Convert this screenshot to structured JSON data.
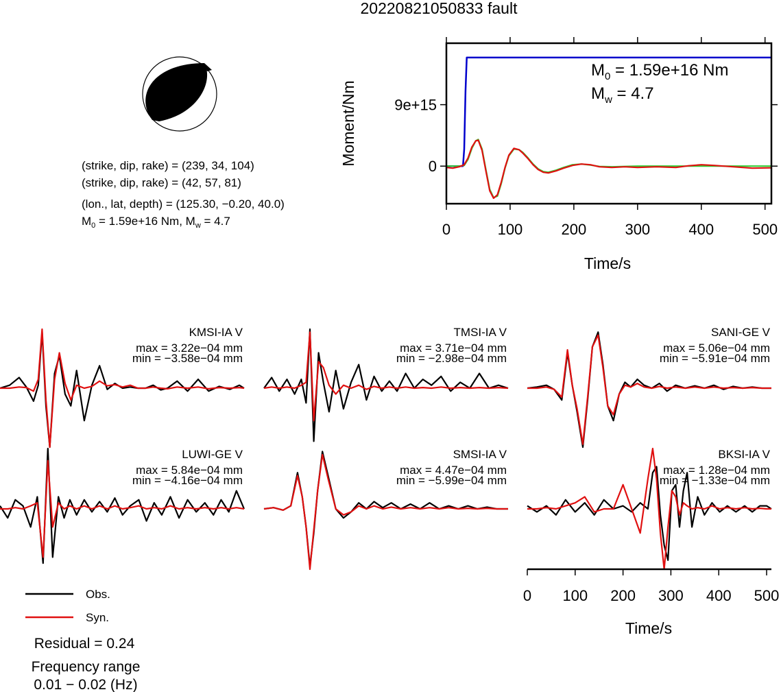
{
  "figure": {
    "title": "20220821050833 fault"
  },
  "mechanism": {
    "plane1": "(strike, dip, rake) = (239, 34, 104)",
    "plane2": "(strike, dip, rake) = (42, 57, 81)",
    "location": "(lon., lat, depth) = (125.30, −0.20, 40.0)",
    "m0_text": "M",
    "m0_sub": "0",
    "m0_rest": " = 1.59e+16 Nm, M",
    "mw_sub": "w",
    "mw_rest": " = 4.7"
  },
  "moment_panel": {
    "m0_prefix": "M",
    "m0_sub": "0",
    "m0_value": " = 1.59e+16 Nm",
    "mw_prefix": "M",
    "mw_sub": "w",
    "mw_value": " = 4.7"
  },
  "legend": {
    "obs_label": "Obs.",
    "syn_label": "Syn.",
    "residual": "Residual = 0.24",
    "freq_title": "Frequency range",
    "freq_value": "0.01 − 0.02 (Hz)"
  },
  "colors": {
    "observed": "#000000",
    "synthetic": "#e01010",
    "moment_cumulative": "#0000cc",
    "moment_rate_fit": "#33cc33",
    "moment_rate": "#e01010"
  },
  "chart_data": [
    {
      "type": "line",
      "panel": "moment",
      "xlabel": "Time/s",
      "ylabel": "Moment/Nm",
      "xlim": [
        0,
        510
      ],
      "ylim": [
        -5500000000000000.0,
        1.8e+16
      ],
      "x_ticks": [
        0,
        100,
        200,
        300,
        400,
        500
      ],
      "y_ticks": [
        {
          "value": 0,
          "label": "0"
        },
        {
          "value": 9000000000000000.0,
          "label": "9e+15"
        }
      ],
      "series": [
        {
          "key": "cumulative",
          "x": [
            0,
            20,
            26,
            28,
            30,
            32,
            510
          ],
          "y": [
            0,
            0,
            0,
            2500000000000000.0,
            1.1e+16,
            1.59e+16,
            1.59e+16
          ]
        },
        {
          "key": "rate_fit",
          "x": [
            0,
            20,
            28,
            34,
            40,
            46,
            50,
            56,
            62,
            68,
            74,
            80,
            86,
            92,
            98,
            106,
            114,
            120,
            128,
            136,
            144,
            152,
            160,
            172,
            184,
            198,
            212,
            226,
            240,
            260,
            280,
            300,
            330,
            360,
            400,
            450,
            510
          ],
          "y": [
            0,
            0,
            100000000000000.0,
            1000000000000000.0,
            2600000000000000.0,
            3700000000000000.0,
            3900000000000000.0,
            2500000000000000.0,
            -500000000000000.0,
            -3400000000000000.0,
            -4600000000000000.0,
            -4400000000000000.0,
            -2600000000000000.0,
            -300000000000000.0,
            1500000000000000.0,
            2500000000000000.0,
            2400000000000000.0,
            2000000000000000.0,
            1200000000000000.0,
            300000000000000.0,
            -400000000000000.0,
            -800000000000000.0,
            -900000000000000.0,
            -600000000000000.0,
            -200000000000000.0,
            200000000000000.0,
            300000000000000.0,
            150000000000000.0,
            -50000000000000.0,
            -100000000000000.0,
            -50000000000000.0,
            0,
            0,
            0,
            0,
            0,
            0
          ]
        },
        {
          "key": "rate",
          "x": [
            0,
            10,
            20,
            28,
            34,
            40,
            46,
            50,
            56,
            62,
            68,
            74,
            80,
            86,
            92,
            98,
            106,
            114,
            120,
            128,
            136,
            144,
            152,
            160,
            172,
            184,
            198,
            212,
            226,
            240,
            260,
            280,
            300,
            330,
            360,
            380,
            400,
            420,
            450,
            480,
            510
          ],
          "y": [
            -200000000000000.0,
            -300000000000000.0,
            -100000000000000.0,
            200000000000000.0,
            1200000000000000.0,
            2800000000000000.0,
            3700000000000000.0,
            3800000000000000.0,
            2300000000000000.0,
            -700000000000000.0,
            -3600000000000000.0,
            -4700000000000000.0,
            -4200000000000000.0,
            -2400000000000000.0,
            -200000000000000.0,
            1600000000000000.0,
            2600000000000000.0,
            2400000000000000.0,
            1900000000000000.0,
            1100000000000000.0,
            200000000000000.0,
            -500000000000000.0,
            -900000000000000.0,
            -1000000000000000.0,
            -700000000000000.0,
            -300000000000000.0,
            100000000000000.0,
            300000000000000.0,
            200000000000000.0,
            -100000000000000.0,
            -200000000000000.0,
            -100000000000000.0,
            -200000000000000.0,
            -100000000000000.0,
            -200000000000000.0,
            50000000000000.0,
            200000000000000.0,
            100000000000000.0,
            -100000000000000.0,
            -300000000000000.0,
            -250000000000000.0
          ]
        }
      ]
    },
    {
      "type": "line",
      "panel": "waveforms",
      "xlabel": "Time/s",
      "xlim": [
        0,
        510
      ],
      "x_ticks": [
        0,
        100,
        200,
        300,
        400,
        500
      ],
      "stations": [
        {
          "name": "KMSI-IA V",
          "max": "max = 3.22e−04 mm",
          "min": "min = −3.58e−04 mm",
          "t": [
            0,
            20,
            40,
            55,
            70,
            80,
            88,
            96,
            104,
            114,
            124,
            136,
            148,
            160,
            176,
            192,
            208,
            224,
            240,
            256,
            272,
            288,
            304,
            320,
            336,
            350,
            370,
            392,
            414,
            436,
            458,
            480,
            500,
            510
          ],
          "obs": [
            0.0,
            0.05,
            0.18,
            0.02,
            -0.22,
            0.05,
            0.95,
            -0.3,
            -1.0,
            0.25,
            0.55,
            -0.1,
            -0.3,
            0.3,
            -0.55,
            0.05,
            0.38,
            -0.02,
            0.08,
            0.0,
            0.02,
            0.0,
            0.0,
            0.05,
            -0.03,
            0.0,
            0.12,
            -0.05,
            0.15,
            -0.05,
            0.03,
            -0.02,
            0.05,
            0.0
          ],
          "syn": [
            0.0,
            0.0,
            0.02,
            0.01,
            -0.05,
            0.15,
            1.0,
            -0.2,
            -1.0,
            0.15,
            0.6,
            0.08,
            -0.2,
            0.05,
            0.0,
            0.03,
            0.12,
            0.04,
            0.06,
            0.02,
            0.05,
            0.0,
            0.0,
            0.02,
            0.0,
            -0.01,
            0.02,
            0.0,
            0.02,
            -0.01,
            0.01,
            0.0,
            0.01,
            0.0
          ]
        },
        {
          "name": "TMSI-IA V",
          "max": "max = 3.71e−04 mm",
          "min": "min = −2.98e−04 mm",
          "t": [
            0,
            16,
            32,
            48,
            64,
            78,
            88,
            96,
            104,
            114,
            124,
            136,
            150,
            166,
            182,
            198,
            214,
            230,
            246,
            262,
            278,
            296,
            314,
            332,
            350,
            370,
            390,
            410,
            430,
            450,
            470,
            490,
            510
          ],
          "obs": [
            0.0,
            0.18,
            -0.05,
            0.15,
            -0.1,
            0.15,
            -0.25,
            1.0,
            -0.9,
            0.6,
            0.1,
            -0.4,
            0.3,
            -0.35,
            0.1,
            0.4,
            -0.2,
            0.2,
            -0.05,
            0.12,
            -0.05,
            0.25,
            0.0,
            0.15,
            0.05,
            0.2,
            -0.05,
            0.1,
            0.0,
            0.25,
            0.0,
            0.05,
            0.0
          ],
          "syn": [
            0.0,
            0.02,
            0.0,
            0.02,
            0.0,
            0.05,
            0.1,
            0.95,
            -0.55,
            0.45,
            0.35,
            0.05,
            -0.1,
            0.05,
            0.0,
            0.05,
            -0.02,
            0.03,
            0.0,
            0.02,
            0.0,
            0.02,
            0.0,
            0.01,
            0.0,
            0.02,
            0.0,
            0.01,
            0.0,
            0.01,
            0.0,
            0.01,
            0.0
          ]
        },
        {
          "name": "SANI-GE V",
          "max": "max = 5.06e−04 mm",
          "min": "min = −5.91e−04 mm",
          "t": [
            0,
            20,
            40,
            56,
            72,
            84,
            94,
            104,
            116,
            126,
            136,
            148,
            158,
            168,
            180,
            192,
            204,
            216,
            230,
            244,
            260,
            276,
            292,
            310,
            330,
            350,
            370,
            390,
            410,
            430,
            450,
            470,
            490,
            510
          ],
          "obs": [
            0.0,
            0.02,
            0.05,
            -0.02,
            -0.2,
            0.6,
            0.05,
            -0.4,
            -1.0,
            -0.2,
            0.7,
            0.95,
            0.4,
            -0.3,
            -0.55,
            -0.1,
            0.1,
            0.02,
            0.15,
            0.05,
            0.0,
            0.08,
            -0.05,
            0.05,
            0.0,
            0.04,
            0.0,
            0.05,
            -0.02,
            0.03,
            0.0,
            0.02,
            0.0,
            0.0
          ],
          "syn": [
            0.0,
            0.0,
            0.02,
            -0.02,
            -0.15,
            0.65,
            0.05,
            -0.35,
            -0.95,
            -0.15,
            0.7,
            0.9,
            0.35,
            -0.3,
            -0.45,
            -0.1,
            0.05,
            0.02,
            0.08,
            0.02,
            0.0,
            0.03,
            0.0,
            0.02,
            0.0,
            0.02,
            0.0,
            0.02,
            0.0,
            0.01,
            0.0,
            0.01,
            0.0,
            0.0
          ]
        },
        {
          "name": "LUWI-GE V",
          "max": "max = 5.84e−04 mm",
          "min": "min = −4.16e−04 mm",
          "t": [
            0,
            16,
            32,
            48,
            64,
            78,
            90,
            100,
            110,
            122,
            134,
            146,
            160,
            176,
            192,
            208,
            224,
            240,
            256,
            272,
            290,
            306,
            322,
            338,
            356,
            374,
            392,
            410,
            428,
            446,
            462,
            478,
            494,
            510
          ],
          "obs": [
            0.05,
            -0.15,
            0.15,
            0.05,
            -0.3,
            0.2,
            -0.9,
            1.0,
            -0.8,
            0.2,
            -0.15,
            0.15,
            -0.1,
            0.15,
            -0.05,
            0.12,
            -0.05,
            0.18,
            -0.1,
            0.05,
            0.15,
            -0.2,
            0.1,
            -0.1,
            0.2,
            -0.15,
            0.15,
            -0.05,
            0.1,
            -0.1,
            0.15,
            -0.05,
            0.3,
            0.0
          ],
          "syn": [
            0.0,
            0.0,
            0.02,
            0.0,
            0.05,
            0.1,
            -0.8,
            0.8,
            -0.3,
            0.1,
            0.0,
            0.05,
            0.0,
            0.05,
            0.0,
            0.05,
            0.0,
            0.05,
            0.0,
            0.02,
            0.05,
            0.0,
            0.02,
            0.0,
            0.05,
            0.0,
            0.02,
            0.0,
            0.02,
            0.0,
            0.02,
            0.0,
            0.02,
            0.0
          ]
        },
        {
          "name": "SMSI-IA V",
          "max": "max = 4.47e−04 mm",
          "min": "min = −5.99e−04 mm",
          "t": [
            0,
            20,
            40,
            56,
            70,
            80,
            88,
            96,
            104,
            112,
            122,
            134,
            150,
            166,
            182,
            198,
            214,
            230,
            248,
            266,
            286,
            306,
            326,
            346,
            366,
            386,
            406,
            426,
            446,
            466,
            486,
            510
          ],
          "obs": [
            0.0,
            0.02,
            -0.02,
            0.05,
            0.6,
            0.2,
            -0.3,
            -0.95,
            -0.4,
            0.3,
            0.95,
            0.55,
            0.0,
            -0.15,
            -0.05,
            0.1,
            0.0,
            0.12,
            0.02,
            0.1,
            0.0,
            0.08,
            0.0,
            0.1,
            0.0,
            0.05,
            0.0,
            0.05,
            0.0,
            0.03,
            0.0,
            0.0
          ],
          "syn": [
            0.0,
            0.02,
            -0.02,
            0.05,
            0.55,
            0.2,
            -0.3,
            -1.0,
            -0.35,
            0.3,
            0.9,
            0.5,
            0.0,
            -0.1,
            -0.05,
            0.05,
            0.0,
            0.05,
            0.0,
            0.03,
            0.0,
            0.02,
            0.0,
            0.02,
            0.0,
            0.02,
            0.0,
            0.01,
            0.0,
            0.01,
            0.0,
            0.0
          ]
        },
        {
          "name": "BKSI-IA V",
          "max": "max = 1.28e−04 mm",
          "min": "min = −1.33e−04 mm",
          "t": [
            0,
            20,
            40,
            60,
            80,
            100,
            120,
            140,
            160,
            180,
            200,
            218,
            236,
            252,
            262,
            270,
            278,
            286,
            294,
            302,
            310,
            318,
            326,
            334,
            344,
            356,
            370,
            386,
            402,
            418,
            436,
            454,
            470,
            486,
            500,
            510
          ],
          "obs": [
            0.05,
            -0.05,
            0.05,
            -0.1,
            0.15,
            -0.05,
            0.1,
            -0.1,
            0.15,
            0.0,
            0.05,
            -0.05,
            0.1,
            0.0,
            0.6,
            0.7,
            -0.1,
            -0.6,
            -0.85,
            0.3,
            0.4,
            -0.3,
            0.3,
            0.6,
            -0.3,
            0.2,
            -0.1,
            0.1,
            -0.05,
            0.05,
            -0.05,
            0.05,
            -0.05,
            0.05,
            0.05,
            0.0
          ],
          "syn": [
            0.0,
            0.0,
            0.02,
            0.0,
            0.05,
            0.1,
            0.2,
            -0.05,
            0.0,
            0.0,
            0.4,
            0.0,
            -0.4,
            0.5,
            1.0,
            0.5,
            -0.4,
            -1.0,
            -0.3,
            0.3,
            0.2,
            -0.1,
            0.1,
            0.05,
            0.0,
            0.02,
            0.0,
            0.05,
            0.0,
            0.02,
            0.0,
            0.02,
            0.0,
            0.01,
            0.0,
            0.0
          ]
        }
      ]
    }
  ]
}
